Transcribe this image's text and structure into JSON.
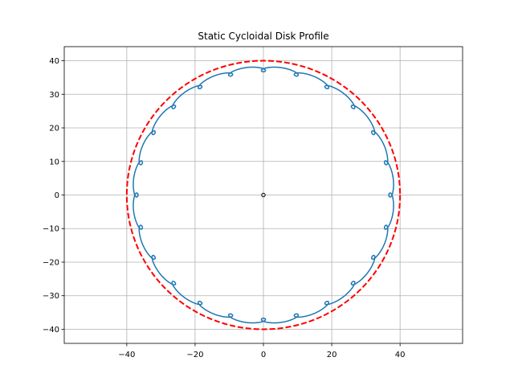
{
  "chart_data": {
    "type": "line",
    "title": "Static Cycloidal Disk Profile",
    "xlabel": "",
    "ylabel": "",
    "xlim": [
      -58.3,
      58.3
    ],
    "ylim": [
      -44.2,
      44.2
    ],
    "xticks": [
      -40,
      -20,
      0,
      20,
      40
    ],
    "yticks": [
      -40,
      -30,
      -20,
      -10,
      0,
      10,
      20,
      30,
      40
    ],
    "xtick_labels": [
      "−40",
      "−20",
      "0",
      "20",
      "40"
    ],
    "ytick_labels": [
      "−40",
      "−30",
      "−20",
      "−10",
      "0",
      "10",
      "20",
      "30",
      "40"
    ],
    "grid": true,
    "aspect": "equal",
    "series": [
      {
        "kind": "cycloidal-disk-profile",
        "color": "#1f77b4",
        "style": "solid",
        "pin_circle_radius": 40,
        "pin_radius": 2.5,
        "eccentricity": 0.8,
        "lobes": 24
      },
      {
        "kind": "circle",
        "color": "#ff0000",
        "style": "dashed",
        "center": [
          0,
          0
        ],
        "radius": 40
      },
      {
        "kind": "point",
        "color": "#000000",
        "center": [
          0,
          0
        ],
        "radius": 0.5
      }
    ]
  }
}
